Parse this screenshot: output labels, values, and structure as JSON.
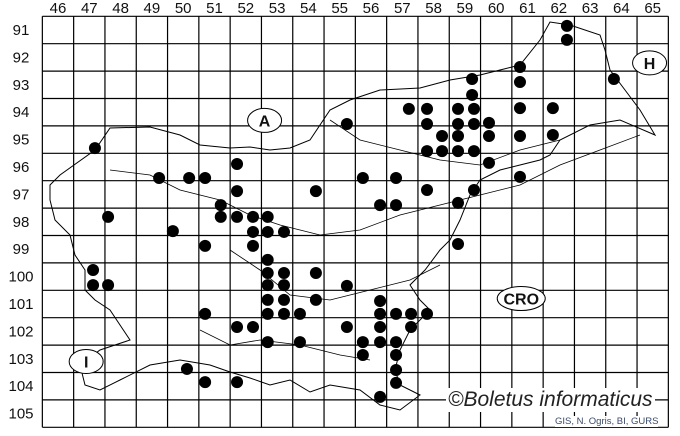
{
  "map": {
    "columns": [
      46,
      47,
      48,
      49,
      50,
      51,
      52,
      53,
      54,
      55,
      56,
      57,
      58,
      59,
      60,
      61,
      62,
      63,
      64,
      65
    ],
    "rows": [
      91,
      92,
      93,
      94,
      95,
      96,
      97,
      98,
      99,
      100,
      101,
      102,
      103,
      104,
      105
    ],
    "country_labels": [
      {
        "label": "A",
        "col": 52.6,
        "row": 94.3
      },
      {
        "label": "H",
        "col": 64.9,
        "row": 92.2
      },
      {
        "label": "CRO",
        "col": 60.8,
        "row": 100.8
      },
      {
        "label": "I",
        "col": 46.9,
        "row": 103.1
      }
    ],
    "dot_color": "#000000",
    "records": [
      [
        62.26,
        90.85
      ],
      [
        62.26,
        91.36
      ],
      [
        60.76,
        92.35
      ],
      [
        60.76,
        92.9
      ],
      [
        63.76,
        92.79
      ],
      [
        59.23,
        92.79
      ],
      [
        59.23,
        93.37
      ],
      [
        57.21,
        93.88
      ],
      [
        57.79,
        93.88
      ],
      [
        58.78,
        93.88
      ],
      [
        59.29,
        93.88
      ],
      [
        60.76,
        93.85
      ],
      [
        61.81,
        93.85
      ],
      [
        57.79,
        94.43
      ],
      [
        58.78,
        94.43
      ],
      [
        59.29,
        94.43
      ],
      [
        59.77,
        94.39
      ],
      [
        55.23,
        94.43
      ],
      [
        58.27,
        94.87
      ],
      [
        58.78,
        94.87
      ],
      [
        59.77,
        94.87
      ],
      [
        60.76,
        94.87
      ],
      [
        61.81,
        94.83
      ],
      [
        57.79,
        95.42
      ],
      [
        58.27,
        95.42
      ],
      [
        58.78,
        95.42
      ],
      [
        59.29,
        95.42
      ],
      [
        59.77,
        95.85
      ],
      [
        60.76,
        96.36
      ],
      [
        47.18,
        95.31
      ],
      [
        51.72,
        95.89
      ],
      [
        49.23,
        96.4
      ],
      [
        50.19,
        96.4
      ],
      [
        50.7,
        96.4
      ],
      [
        55.74,
        96.4
      ],
      [
        56.8,
        96.4
      ],
      [
        51.72,
        96.88
      ],
      [
        54.24,
        96.88
      ],
      [
        57.79,
        96.84
      ],
      [
        59.29,
        96.84
      ],
      [
        51.2,
        97.39
      ],
      [
        56.29,
        97.39
      ],
      [
        56.8,
        97.39
      ],
      [
        58.78,
        97.31
      ],
      [
        47.6,
        97.82
      ],
      [
        51.2,
        97.82
      ],
      [
        51.72,
        97.82
      ],
      [
        52.23,
        97.82
      ],
      [
        52.7,
        97.82
      ],
      [
        52.23,
        98.37
      ],
      [
        52.7,
        98.37
      ],
      [
        53.22,
        98.37
      ],
      [
        49.67,
        98.34
      ],
      [
        50.7,
        98.88
      ],
      [
        52.23,
        98.88
      ],
      [
        58.78,
        98.81
      ],
      [
        52.7,
        99.39
      ],
      [
        47.12,
        99.76
      ],
      [
        52.7,
        99.87
      ],
      [
        53.22,
        99.87
      ],
      [
        54.24,
        99.87
      ],
      [
        47.12,
        100.31
      ],
      [
        47.6,
        100.31
      ],
      [
        52.7,
        100.31
      ],
      [
        53.22,
        100.31
      ],
      [
        55.23,
        100.34
      ],
      [
        56.29,
        100.89
      ],
      [
        52.7,
        100.85
      ],
      [
        53.22,
        100.85
      ],
      [
        54.24,
        100.85
      ],
      [
        56.29,
        101.36
      ],
      [
        56.8,
        101.36
      ],
      [
        57.28,
        101.36
      ],
      [
        57.79,
        101.36
      ],
      [
        50.7,
        101.36
      ],
      [
        52.7,
        101.36
      ],
      [
        53.22,
        101.36
      ],
      [
        53.73,
        101.36
      ],
      [
        51.72,
        101.84
      ],
      [
        52.23,
        101.84
      ],
      [
        55.23,
        101.84
      ],
      [
        56.29,
        101.84
      ],
      [
        57.28,
        101.84
      ],
      [
        52.7,
        102.39
      ],
      [
        53.73,
        102.39
      ],
      [
        55.74,
        102.39
      ],
      [
        56.29,
        102.39
      ],
      [
        56.8,
        102.39
      ],
      [
        55.74,
        102.86
      ],
      [
        56.8,
        102.86
      ],
      [
        56.8,
        103.41
      ],
      [
        50.12,
        103.37
      ],
      [
        50.7,
        103.85
      ],
      [
        51.72,
        103.85
      ],
      [
        56.8,
        103.88
      ],
      [
        56.29,
        104.39
      ]
    ]
  },
  "copyright": "©Boletus informaticus",
  "credit": "GIS, N. Ogris, BI, GURS"
}
